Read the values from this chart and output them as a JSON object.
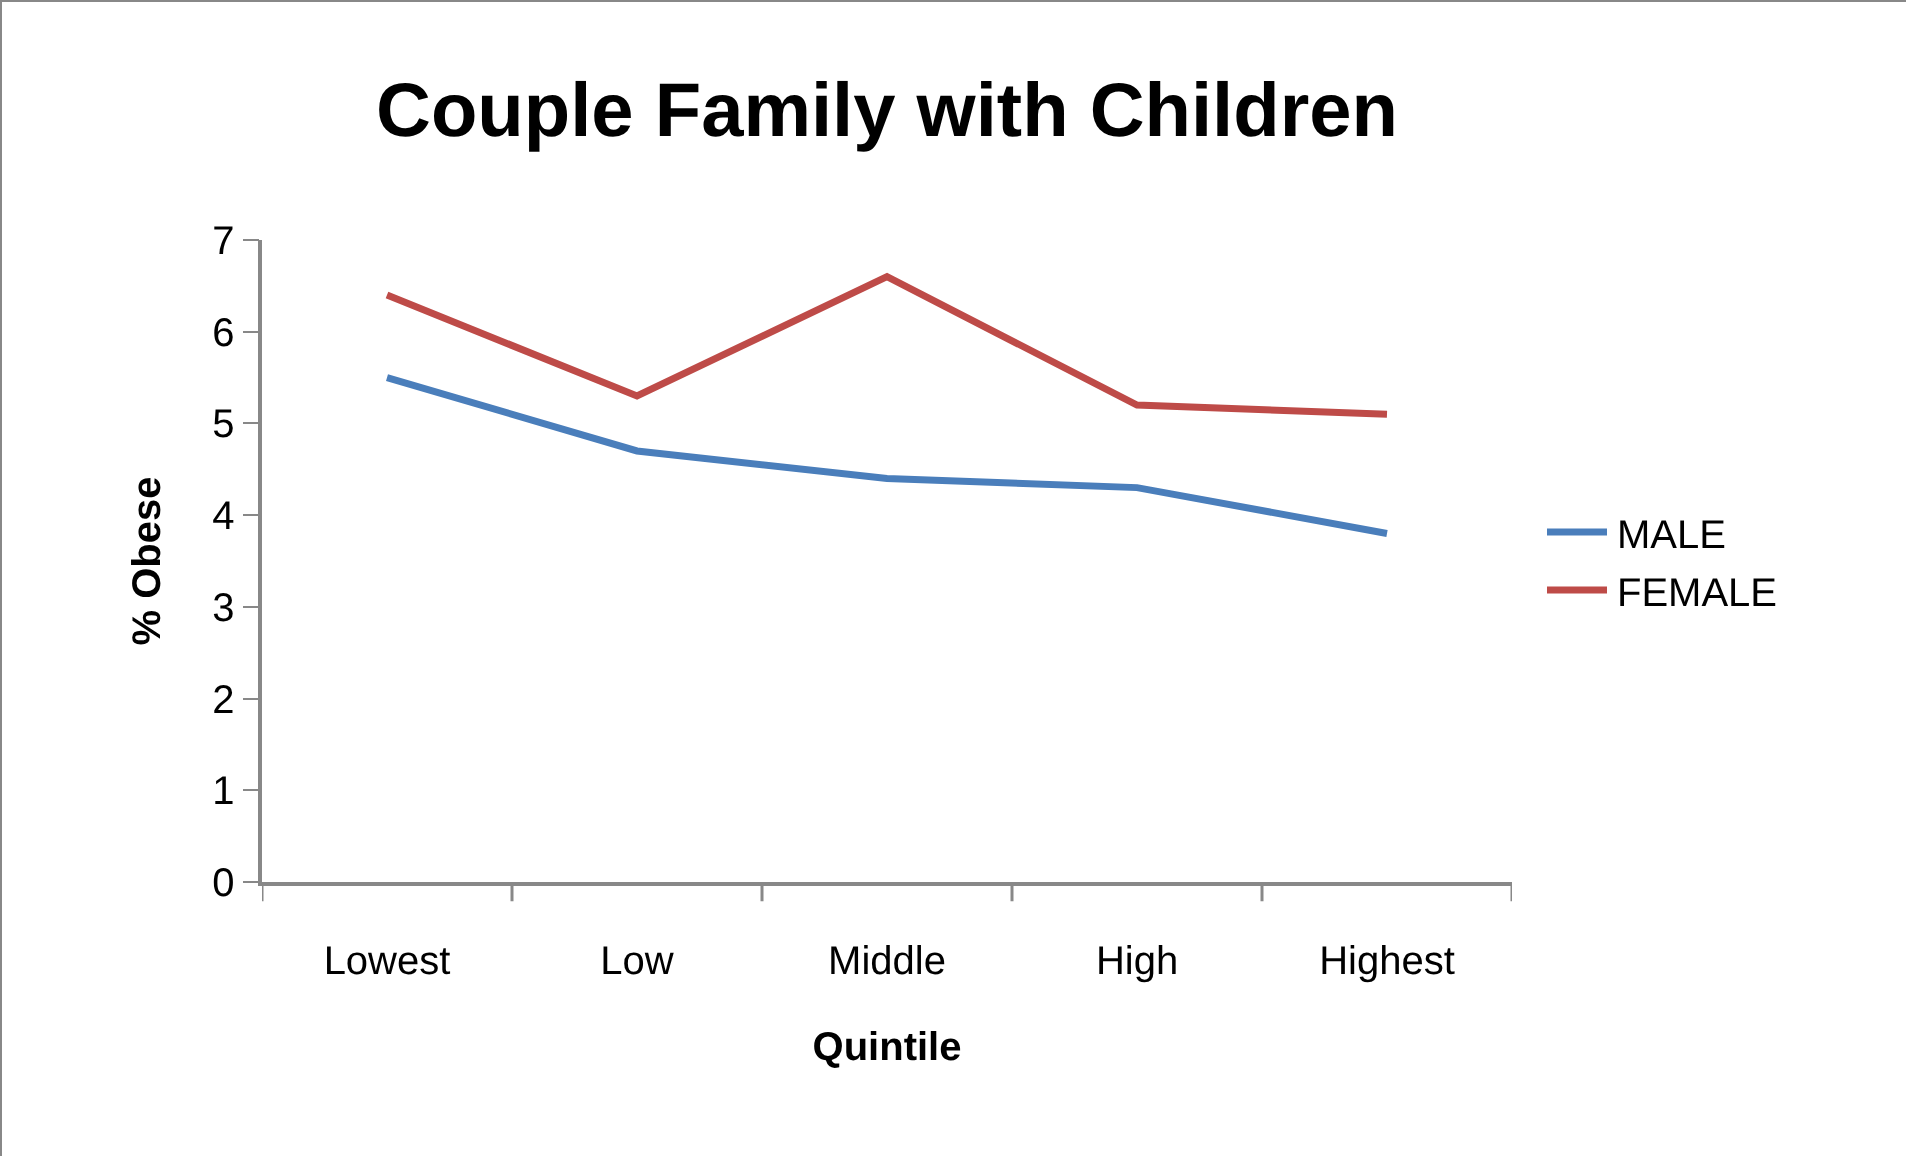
{
  "chart_data": {
    "type": "line",
    "title": "Couple Family with Children",
    "xlabel": "Quintile",
    "ylabel": "% Obese",
    "categories": [
      "Lowest",
      "Low",
      "Middle",
      "High",
      "Highest"
    ],
    "series": [
      {
        "name": "MALE",
        "color": "#4a7ebb",
        "values": [
          5.5,
          4.7,
          4.4,
          4.3,
          3.8
        ]
      },
      {
        "name": "FEMALE",
        "color": "#be4b48",
        "values": [
          6.4,
          5.3,
          6.6,
          5.2,
          5.1
        ]
      }
    ],
    "ylim": [
      0,
      7
    ],
    "yticks": [
      0,
      1,
      2,
      3,
      4,
      5,
      6,
      7
    ],
    "grid": false,
    "legend": "right",
    "marker": "none",
    "line_style": "solid"
  }
}
